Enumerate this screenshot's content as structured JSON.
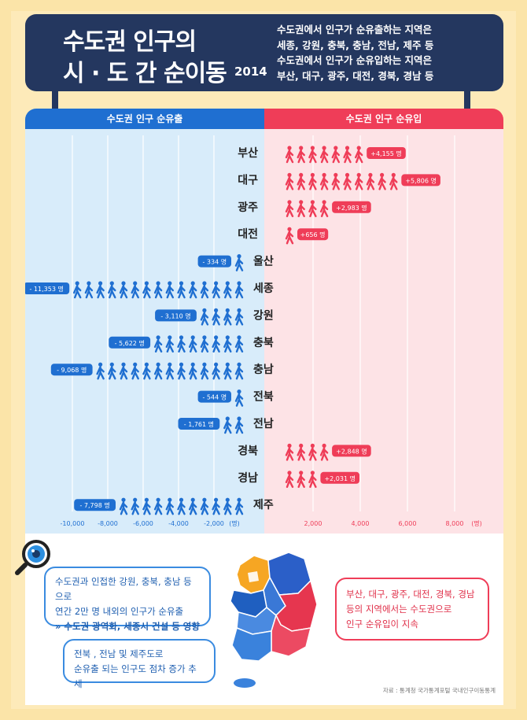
{
  "header": {
    "title_line1": "수도권 인구의",
    "title_line2": "시 · 도 간 순이동",
    "year": "2014",
    "desc_line1": "수도권에서 인구가 순유출하는 지역은",
    "desc_line2": "세종, 강원, 충북, 충남, 전남, 제주 등",
    "desc_line3": "수도권에서 인구가 순유입하는 지역은",
    "desc_line4": "부산, 대구, 광주, 대전, 경북, 경남 등"
  },
  "chart_data": {
    "type": "bar",
    "left_header": "수도권 인구 순유출",
    "right_header": "수도권 인구 순유입",
    "categories": [
      "부산",
      "대구",
      "광주",
      "대전",
      "울산",
      "세종",
      "강원",
      "충북",
      "충남",
      "전북",
      "전남",
      "경북",
      "경남",
      "제주"
    ],
    "values": [
      4155,
      5806,
      2983,
      656,
      -334,
      -11353,
      -3110,
      -5622,
      -9068,
      -544,
      -1761,
      2848,
      2031,
      -7798
    ],
    "value_labels": [
      "+4,155",
      "+5,806",
      "+2,983",
      "+656",
      "- 334",
      "- 11,353",
      "- 3,110",
      "- 5,622",
      "- 9,068",
      "- 544",
      "- 1,761",
      "+2,848",
      "+2,031",
      "- 7,798"
    ],
    "unit": "명",
    "icon_counts": [
      7,
      10,
      4,
      1,
      1,
      15,
      4,
      8,
      13,
      1,
      2,
      4,
      3,
      11
    ],
    "x_ticks_left": [
      "-10,000",
      "-8,000",
      "-6,000",
      "-4,000",
      "-2,000"
    ],
    "x_ticks_left_values": [
      -10000,
      -8000,
      -6000,
      -4000,
      -2000
    ],
    "x_ticks_right": [
      "2,000",
      "4,000",
      "6,000",
      "8,000"
    ],
    "x_ticks_right_values": [
      2000,
      4000,
      6000,
      8000
    ],
    "x_unit": "(명)",
    "colors": {
      "outflow": "#1f6fd1",
      "inflow": "#ef3d58"
    }
  },
  "notes": {
    "blue1_line1": "수도권과 인접한 강원, 충북, 충남 등으로",
    "blue1_line2": "연간 2만 명 내외의 인구가 순유출",
    "blue1_line3": "» 수도권 광역화, 세종시 건설 등 영향",
    "blue2_line1": "전북 , 전남 및 제주도로",
    "blue2_line2": "순유출 되는 인구도 점차 증가 추세",
    "red_line1": "부산, 대구, 광주, 대전, 경북, 경남",
    "red_line2": "등의 지역에서는 수도권으로",
    "red_line3": "인구 순유입이 지속"
  },
  "source": "자료 : 통계청 국가통계포털 국내인구이동통계",
  "icons": [
    "person-walking-icon",
    "magnifier-icon",
    "korea-map-icon"
  ]
}
